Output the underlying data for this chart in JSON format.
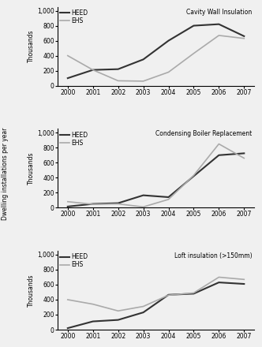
{
  "years": [
    2000,
    2001,
    2002,
    2003,
    2004,
    2005,
    2006,
    2007
  ],
  "panels": [
    {
      "title": "Cavity Wall Insulation",
      "heed": [
        100,
        210,
        220,
        350,
        600,
        800,
        820,
        660
      ],
      "ehs": [
        400,
        210,
        65,
        60,
        180,
        430,
        670,
        630
      ]
    },
    {
      "title": "Condensing Boiler Replacement",
      "heed": [
        15,
        50,
        60,
        165,
        140,
        420,
        700,
        725
      ],
      "ehs": [
        80,
        45,
        50,
        10,
        110,
        430,
        850,
        660
      ]
    },
    {
      "title": "Loft insulation (>150mm)",
      "heed": [
        20,
        110,
        130,
        230,
        465,
        480,
        630,
        610
      ],
      "ehs": [
        400,
        340,
        250,
        310,
        460,
        490,
        700,
        670
      ]
    }
  ],
  "heed_color": "#333333",
  "ehs_color": "#aaaaaa",
  "heed_lw": 1.5,
  "ehs_lw": 1.2,
  "ylabel_shared": "Dwelling installations per year",
  "ylabel_thousands": "Thousands",
  "yticks": [
    0,
    200,
    400,
    600,
    800,
    1000
  ],
  "ylim": [
    0,
    1050
  ],
  "bg_color": "#f0f0f0"
}
